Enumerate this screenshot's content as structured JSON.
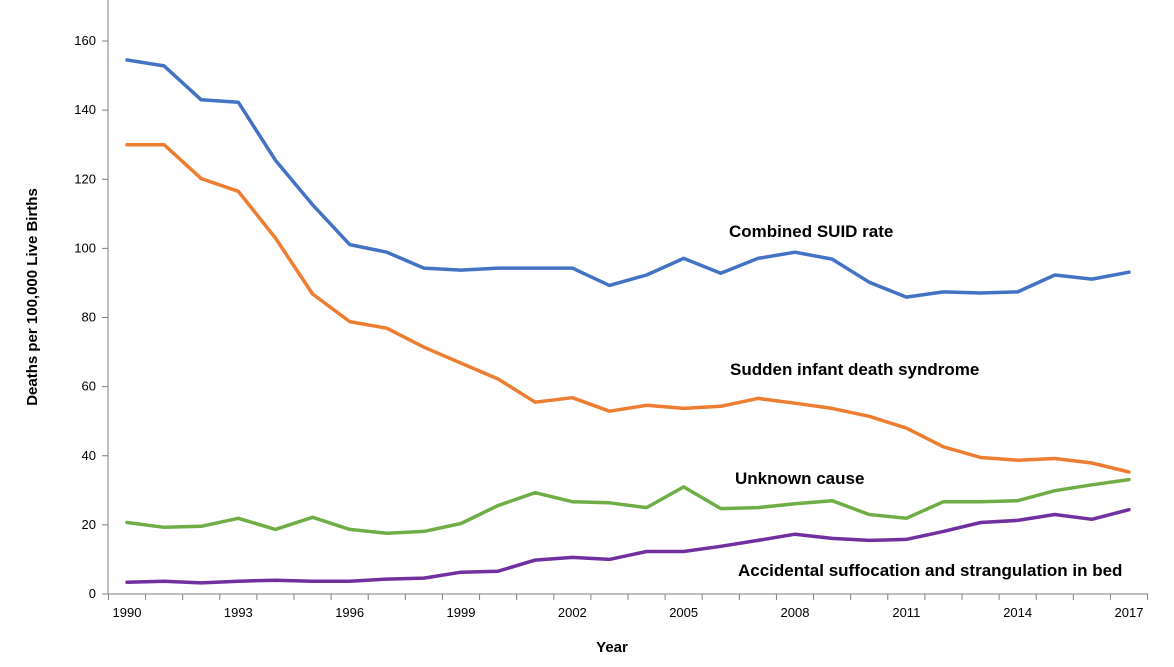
{
  "chart_data": {
    "type": "line",
    "title": "",
    "xlabel": "Year",
    "ylabel": "Deaths per 100,000 Live Births",
    "xlim": [
      1990,
      2017
    ],
    "ylim": [
      0,
      160
    ],
    "y_ticks": [
      0,
      20,
      40,
      60,
      80,
      100,
      120,
      140,
      160
    ],
    "x_tick_labels": [
      "1990",
      "1993",
      "1996",
      "1999",
      "2002",
      "2005",
      "2008",
      "2011",
      "2014",
      "2017"
    ],
    "x": [
      1990,
      1991,
      1992,
      1993,
      1994,
      1995,
      1996,
      1997,
      1998,
      1999,
      2000,
      2001,
      2002,
      2003,
      2004,
      2005,
      2006,
      2007,
      2008,
      2009,
      2010,
      2011,
      2012,
      2013,
      2014,
      2015,
      2016,
      2017
    ],
    "grid": false,
    "legend": "none (series labeled directly on chart)",
    "series": [
      {
        "name": "Combined SUID rate",
        "color": "#4472C4",
        "values": [
          154.5,
          152.8,
          143.0,
          142.3,
          125.5,
          112.6,
          101.1,
          98.9,
          94.3,
          93.7,
          94.3,
          94.3,
          94.3,
          89.3,
          92.3,
          97.1,
          92.8,
          97.1,
          98.9,
          96.9,
          90.2,
          85.9,
          87.4,
          87.1,
          87.4,
          92.3,
          91.1,
          93.1
        ]
      },
      {
        "name": "Sudden infant death syndrome",
        "color": "#ED7D31",
        "values": [
          130.0,
          130.0,
          120.2,
          116.5,
          103.0,
          86.8,
          78.8,
          76.9,
          71.4,
          66.8,
          62.2,
          55.5,
          56.8,
          52.9,
          54.6,
          53.7,
          54.3,
          56.6,
          55.2,
          53.7,
          51.4,
          48.0,
          42.6,
          39.5,
          38.7,
          39.2,
          37.9,
          35.3
        ]
      },
      {
        "name": "Unknown cause",
        "color": "#70AD47",
        "values": [
          20.7,
          19.3,
          19.6,
          21.9,
          18.7,
          22.2,
          18.7,
          17.6,
          18.1,
          20.4,
          25.6,
          29.3,
          26.7,
          26.4,
          25.0,
          31.0,
          24.7,
          25.0,
          26.1,
          27.0,
          23.0,
          21.9,
          26.7,
          26.7,
          27.0,
          29.9,
          31.6,
          33.1
        ]
      },
      {
        "name": "Accidental suffocation and strangulation in bed",
        "color": "#7030A0",
        "values": [
          3.4,
          3.7,
          3.2,
          3.7,
          4.0,
          3.7,
          3.7,
          4.3,
          4.6,
          6.3,
          6.6,
          9.8,
          10.6,
          10.0,
          12.3,
          12.3,
          13.8,
          15.5,
          17.3,
          16.1,
          15.5,
          15.8,
          18.1,
          20.7,
          21.3,
          23.0,
          21.6,
          24.4
        ]
      }
    ]
  }
}
